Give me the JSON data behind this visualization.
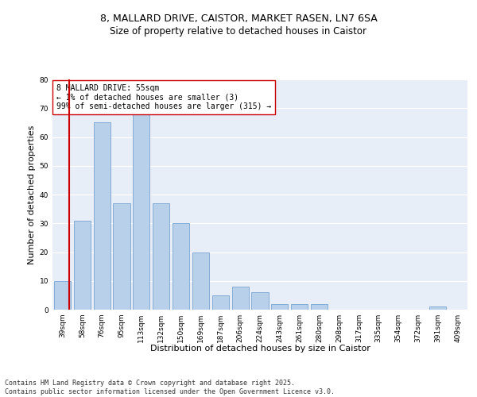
{
  "title_line1": "8, MALLARD DRIVE, CAISTOR, MARKET RASEN, LN7 6SA",
  "title_line2": "Size of property relative to detached houses in Caistor",
  "categories": [
    "39sqm",
    "58sqm",
    "76sqm",
    "95sqm",
    "113sqm",
    "132sqm",
    "150sqm",
    "169sqm",
    "187sqm",
    "206sqm",
    "224sqm",
    "243sqm",
    "261sqm",
    "280sqm",
    "298sqm",
    "317sqm",
    "335sqm",
    "354sqm",
    "372sqm",
    "391sqm",
    "409sqm"
  ],
  "values": [
    10,
    31,
    65,
    37,
    68,
    37,
    30,
    20,
    5,
    8,
    6,
    2,
    2,
    2,
    0,
    0,
    0,
    0,
    0,
    1,
    0
  ],
  "bar_color": "#b8d0ea",
  "bar_edge_color": "#6699cc",
  "highlight_line_color": "#cc0000",
  "highlight_bar_index": 0,
  "ylabel": "Number of detached properties",
  "xlabel": "Distribution of detached houses by size in Caistor",
  "ylim": [
    0,
    80
  ],
  "yticks": [
    0,
    10,
    20,
    30,
    40,
    50,
    60,
    70,
    80
  ],
  "annotation_text": "8 MALLARD DRIVE: 55sqm\n← 1% of detached houses are smaller (3)\n99% of semi-detached houses are larger (315) →",
  "annotation_box_color": "#ffffff",
  "annotation_box_edge_color": "#cc0000",
  "footer_text": "Contains HM Land Registry data © Crown copyright and database right 2025.\nContains public sector information licensed under the Open Government Licence v3.0.",
  "background_color": "#e8eef8",
  "grid_color": "#ffffff",
  "title_fontsize": 9,
  "subtitle_fontsize": 8.5,
  "ylabel_fontsize": 8,
  "xlabel_fontsize": 8,
  "tick_label_fontsize": 6.5,
  "annotation_fontsize": 7,
  "footer_fontsize": 6
}
